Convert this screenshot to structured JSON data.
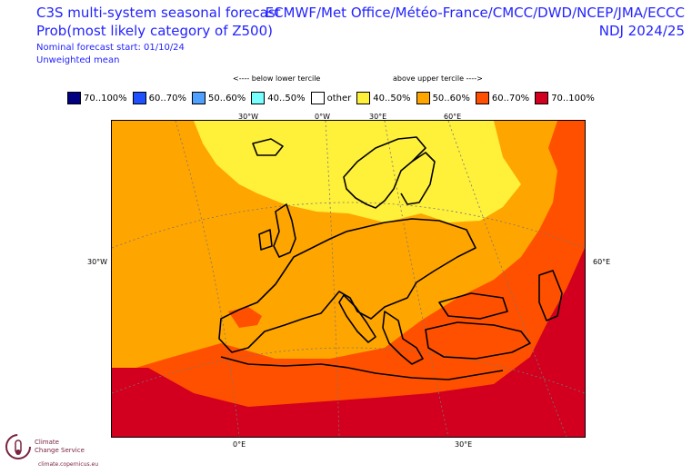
{
  "header": {
    "title_line1": "C3S multi-system seasonal forecast",
    "title_line2": "Prob(most likely category of Z500)",
    "forecast_start": "Nominal forecast start: 01/10/24",
    "weighting": "Unweighted mean",
    "centres": "ECMWF/Met Office/Météo-France/CMCC/DWD/NCEP/JMA/ECCC",
    "period": "NDJ 2024/25"
  },
  "terciles": {
    "below": "<---- below lower tercile",
    "above": "above upper tercile ---->"
  },
  "legend": [
    {
      "label": "70..100%",
      "color": "#000080"
    },
    {
      "label": "60..70%",
      "color": "#1e50ff"
    },
    {
      "label": "50..60%",
      "color": "#50a0ff"
    },
    {
      "label": "40..50%",
      "color": "#78ffff"
    },
    {
      "label": "other",
      "color": "#ffffff"
    },
    {
      "label": "40..50%",
      "color": "#fff03a"
    },
    {
      "label": "50..60%",
      "color": "#ffa500"
    },
    {
      "label": "60..70%",
      "color": "#ff5000"
    },
    {
      "label": "70..100%",
      "color": "#d2001e"
    }
  ],
  "map": {
    "top_ticks": [
      "30°W",
      "0°W",
      "30°E",
      "60°E"
    ],
    "left_tick": "30°W",
    "right_tick": "60°E",
    "bottom_ticks": [
      "0°E",
      "30°E"
    ],
    "fill_colors": {
      "yellow": "#fff03a",
      "orange": "#ffa500",
      "red_orange": "#ff5000",
      "red": "#d2001e"
    }
  },
  "logo": {
    "line1": "Climate",
    "line2": "Change Service",
    "url": "climate.copernicus.eu"
  }
}
